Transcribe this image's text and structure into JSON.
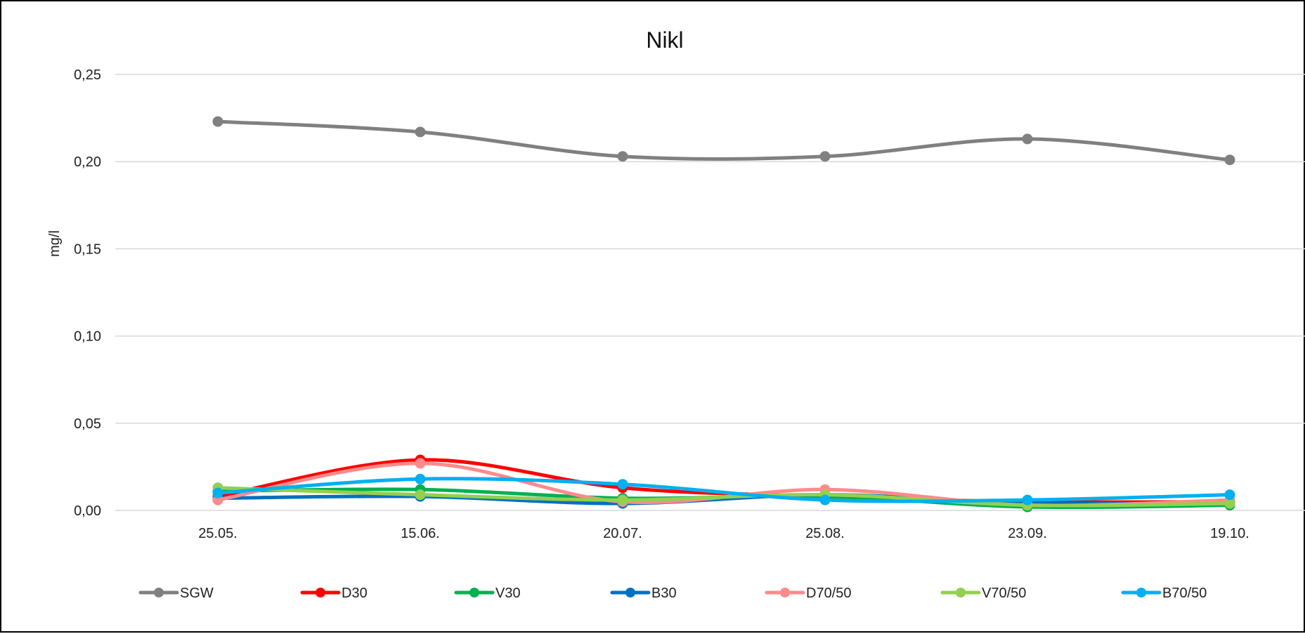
{
  "chart_data": {
    "type": "line",
    "title": "Nikl",
    "xlabel": "",
    "ylabel": "mg/l",
    "categories": [
      "25.05.",
      "15.06.",
      "20.07.",
      "25.08.",
      "23.09.",
      "19.10."
    ],
    "ylim": [
      0,
      0.25
    ],
    "yticks": [
      {
        "value": 0,
        "label": "0,00"
      },
      {
        "value": 0.05,
        "label": "0,05"
      },
      {
        "value": 0.1,
        "label": "0,10"
      },
      {
        "value": 0.15,
        "label": "0,15"
      },
      {
        "value": 0.2,
        "label": "0,20"
      },
      {
        "value": 0.25,
        "label": "0,25"
      }
    ],
    "grid": true,
    "legend_position": "bottom",
    "series": [
      {
        "name": "SGW",
        "color": "#808080",
        "values": [
          0.223,
          0.217,
          0.203,
          0.203,
          0.213,
          0.201
        ]
      },
      {
        "name": "D30",
        "color": "#ff0000",
        "values": [
          0.008,
          0.029,
          0.013,
          0.008,
          0.005,
          0.005
        ]
      },
      {
        "name": "V30",
        "color": "#00b050",
        "values": [
          0.011,
          0.012,
          0.007,
          0.008,
          0.002,
          0.003
        ]
      },
      {
        "name": "B30",
        "color": "#0070c0",
        "values": [
          0.007,
          0.008,
          0.004,
          0.009,
          0.004,
          0.005
        ]
      },
      {
        "name": "D70/50",
        "color": "#ff8a8a",
        "values": [
          0.006,
          0.027,
          0.005,
          0.012,
          0.003,
          0.006
        ]
      },
      {
        "name": "V70/50",
        "color": "#92d050",
        "values": [
          0.013,
          0.009,
          0.006,
          0.009,
          0.003,
          0.004
        ]
      },
      {
        "name": "B70/50",
        "color": "#00b0f0",
        "values": [
          0.01,
          0.018,
          0.015,
          0.006,
          0.006,
          0.009
        ]
      }
    ]
  }
}
